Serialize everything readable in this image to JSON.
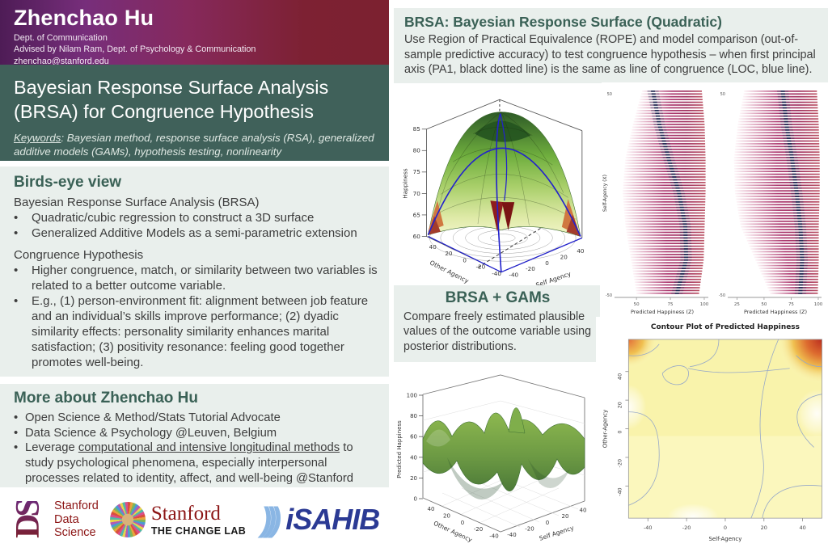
{
  "author": {
    "name": "Zhenchao Hu",
    "dept": "Dept. of Communication",
    "advisor": "Advised by Nilam Ram, Dept. of Psychology & Communication",
    "email": "zhenchao@stanford.edu"
  },
  "title": {
    "line1": "Bayesian Response Surface Analysis",
    "line2": "(BRSA) for Congruence Hypothesis",
    "keywords_label": "Keywords",
    "keywords_rest": ": Bayesian method, response surface analysis (RSA), generalized additive models (GAMs), hypothesis testing, nonlinearity"
  },
  "birdseye": {
    "heading": "Birds-eye view",
    "intro1": "Bayesian Response Surface Analysis (BRSA)",
    "bullets1": [
      "Quadratic/cubic regression to construct a 3D surface",
      "Generalized Additive Models as a semi-parametric extension"
    ],
    "intro2": "Congruence Hypothesis",
    "bullets2": [
      "Higher congruence, match, or similarity between two variables is related to a better outcome variable.",
      "E.g., (1) person-environment fit: alignment between job feature and an individual’s skills improve performance; (2) dyadic similarity effects: personality similarity enhances marital satisfaction; (3) positivity resonance: feeling good together promotes well-being."
    ]
  },
  "more": {
    "heading": "More about Zhenchao Hu",
    "bullet1": "Open Science & Method/Stats Tutorial Advocate",
    "bullet2": "Data Science & Psychology @Leuven, Belgium",
    "bullet3_pre": "Leverage ",
    "bullet3_underlined": "computational and intensive longitudinal methods",
    "bullet3_post": " to study psychological phenomena, especially interpersonal processes related to identity, affect, and well-being @Stanford"
  },
  "rsa_section": {
    "heading": "BRSA: Bayesian Response Surface (Quadratic)",
    "body": "Use Region of Practical Equivalence (ROPE) and model comparison (out-of-sample predictive accuracy) to test congruence hypothesis – when first principal axis (PA1, black dotted line) is the same as line of congruence (LOC, blue line)."
  },
  "gams_section": {
    "heading": "BRSA + GAMs",
    "body": "Compare freely estimated plausible values of the outcome variable using posterior distributions."
  },
  "logos": {
    "sds": {
      "mark": "DS",
      "lines": [
        "Stanford",
        "Data",
        "Science"
      ]
    },
    "changelab": {
      "brand": "Stanford",
      "sub": "THE CHANGE LAB"
    },
    "isahib": {
      "waves_glyph": ")))",
      "text": "iSAHIB"
    }
  },
  "colors": {
    "header_purple": "#772e7b",
    "header_red": "#7c2130",
    "teal_block": "#40615a",
    "panel_bg": "#e9efec",
    "heading_green": "#3a6156",
    "loc_blue": "#2222cc",
    "stanford_red": "#8c1515"
  },
  "chart_data": [
    {
      "type": "surface",
      "name": "quadratic-response-surface",
      "zlabel": "Happiness",
      "xlabel": "Self Agency",
      "ylabel": "Other Agency",
      "z_ticks": [
        60,
        65,
        70,
        75,
        80,
        85
      ],
      "x_ticks": [
        -40,
        -20,
        0,
        20,
        40
      ],
      "y_ticks": [
        40,
        20,
        0,
        -20,
        -40
      ],
      "zlim": [
        60,
        85
      ],
      "xlim": [
        -50,
        50
      ],
      "ylim": [
        -50,
        50
      ],
      "peak_z": 83,
      "annotations": [
        "LOC (blue line)",
        "PA1 (black dotted line)",
        "floor contour rings"
      ]
    },
    {
      "type": "ridgeline",
      "name": "posterior-ridges-model-1",
      "xlabel": "Predicted Happiness (Z)",
      "ylabel": "Self-Agency (X)",
      "x_ticks": [
        50,
        75,
        100
      ],
      "y_ticks": [
        50,
        -50
      ],
      "xlim": [
        35,
        103
      ],
      "rows": 74,
      "mode_curve": [
        0.4,
        0.47,
        0.57,
        0.68,
        0.75,
        0.76,
        0.66
      ],
      "profile_left": [
        0.28,
        0.18,
        0.1,
        0.07,
        0.1,
        0.16,
        0.22
      ],
      "profile_right": [
        0.93,
        0.96,
        0.97,
        0.97,
        0.96,
        0.95,
        0.9
      ],
      "mode_color": "#1d2a52",
      "palette": [
        "#fdf4f7",
        "#d898b4",
        "#ac3a70",
        "#a03260",
        "#bd5668"
      ]
    },
    {
      "type": "ridgeline",
      "name": "posterior-ridges-model-2",
      "xlabel": "Predicted Happiness (Z)",
      "ylabel": "Self-Agency (X)",
      "x_ticks": [
        25,
        50,
        75,
        100
      ],
      "y_ticks": [
        50,
        -50
      ],
      "xlim": [
        18,
        103
      ],
      "rows": 74,
      "mode_curve": [
        0.58,
        0.62,
        0.68,
        0.73,
        0.77,
        0.79,
        0.77
      ],
      "profile_left": [
        0.16,
        0.09,
        0.05,
        0.06,
        0.12,
        0.28,
        0.44
      ],
      "profile_right": [
        0.95,
        0.97,
        0.98,
        0.98,
        0.97,
        0.97,
        0.96
      ],
      "mode_color": "#1d2a52",
      "palette": [
        "#fdf4f7",
        "#d898b4",
        "#ac3a70",
        "#a03260",
        "#bd5668"
      ]
    },
    {
      "type": "surface",
      "name": "gam-wavy-surface",
      "zlabel": "Predicted Happiness",
      "xlabel": "Self Agency",
      "ylabel": "Other Agency",
      "z_ticks": [
        0,
        20,
        40,
        60,
        80,
        100
      ],
      "x_ticks": [
        -40,
        -20,
        0,
        20,
        40
      ],
      "y_ticks": [
        40,
        20,
        0,
        -20,
        -40
      ],
      "zlim": [
        0,
        100
      ],
      "xlim": [
        -50,
        50
      ],
      "ylim": [
        -50,
        50
      ]
    },
    {
      "type": "heatmap",
      "name": "contour-plot",
      "title": "Contour Plot of Predicted Happiness",
      "xlabel": "Self-Agency",
      "ylabel": "Other-Agency",
      "x_ticks": [
        -40,
        -20,
        0,
        20,
        40
      ],
      "y_ticks": [
        40,
        20,
        0,
        -20,
        -40
      ],
      "xlim": [
        -50,
        50
      ],
      "ylim": [
        -50,
        50
      ],
      "hot_regions": [
        "top-right corner (high)",
        "top-left corner"
      ],
      "pale_regions": [
        "right middle",
        "left middle",
        "bottom center"
      ]
    }
  ]
}
